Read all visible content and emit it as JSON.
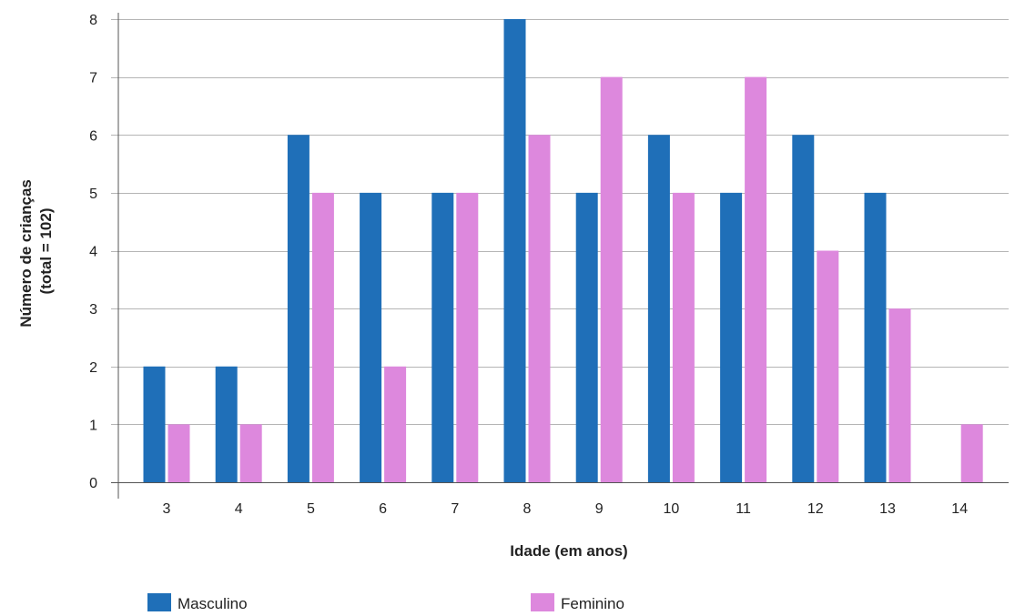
{
  "chart_data": {
    "type": "bar",
    "xlabel": "Idade (em anos)",
    "ylabel_lines": [
      "Número de crianças",
      "(total = 102)"
    ],
    "categories": [
      "3",
      "4",
      "5",
      "6",
      "7",
      "8",
      "9",
      "10",
      "11",
      "12",
      "13",
      "14"
    ],
    "series": [
      {
        "name": "Masculino",
        "color": "#1f6fb8",
        "values": [
          2,
          2,
          6,
          5,
          5,
          8,
          5,
          6,
          5,
          6,
          5,
          0
        ]
      },
      {
        "name": "Feminino",
        "color": "#dd88dd",
        "values": [
          1,
          1,
          5,
          2,
          5,
          6,
          7,
          5,
          7,
          4,
          3,
          1
        ]
      }
    ],
    "ylim": [
      0,
      8
    ],
    "yticks": [
      0,
      1,
      2,
      3,
      4,
      5,
      6,
      7,
      8
    ],
    "grid": true,
    "legend_position": "bottom"
  }
}
